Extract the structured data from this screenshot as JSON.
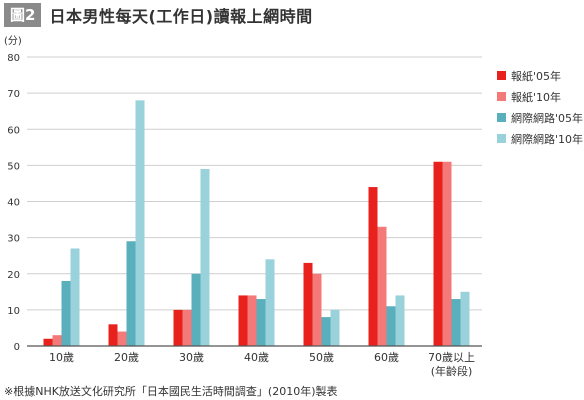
{
  "header": {
    "badge": "圖2",
    "title": "日本男性每天(工作日)讀報上網時間"
  },
  "footnote": "※根據NHK放送文化研究所「日本國民生活時間調查」(2010年)製表",
  "chart_data": {
    "type": "bar",
    "title": "日本男性每天(工作日)讀報上網時間",
    "unit_label": "(分)",
    "xlabel": "(年齡段)",
    "ylabel": "",
    "ylim": [
      0,
      80
    ],
    "yticks": [
      0,
      10,
      20,
      30,
      40,
      50,
      60,
      70,
      80
    ],
    "grid": true,
    "legend_position": "right",
    "categories": [
      "10歲",
      "20歲",
      "30歲",
      "40歲",
      "50歲",
      "60歲",
      "70歲以上"
    ],
    "series": [
      {
        "name": "報紙'05年",
        "color": "#e8211c",
        "values": [
          2,
          6,
          10,
          14,
          23,
          44,
          51
        ]
      },
      {
        "name": "報紙'10年",
        "color": "#f47a7a",
        "values": [
          3,
          4,
          10,
          14,
          20,
          33,
          51
        ]
      },
      {
        "name": "網際網路'05年",
        "color": "#5aafbc",
        "values": [
          18,
          29,
          20,
          13,
          8,
          11,
          13
        ]
      },
      {
        "name": "網際網路'10年",
        "color": "#9ad2db",
        "values": [
          27,
          68,
          49,
          24,
          10,
          14,
          15
        ]
      }
    ]
  }
}
